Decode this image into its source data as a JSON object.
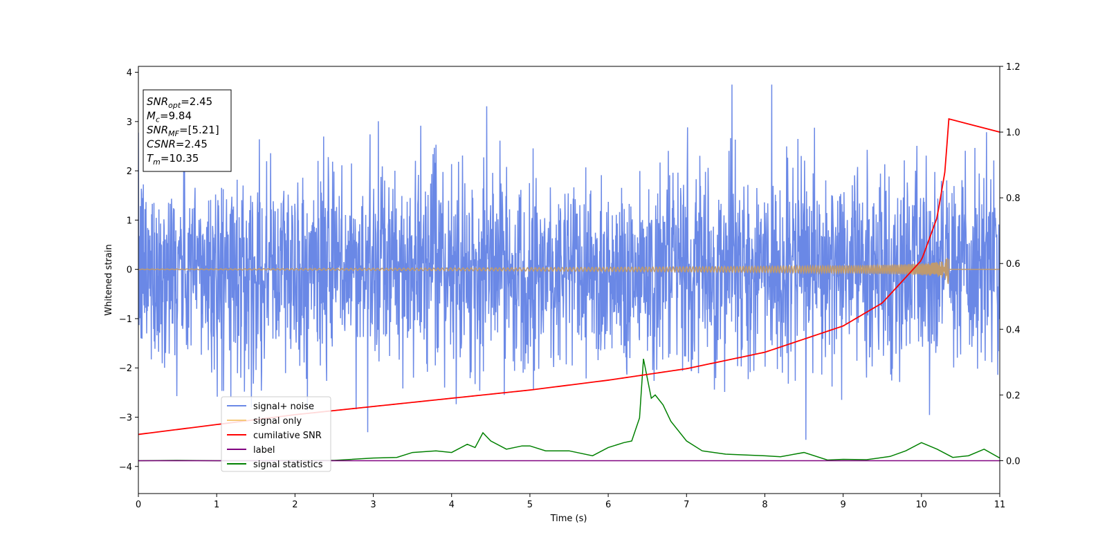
{
  "chart_data": {
    "type": "line",
    "xlabel": "Time (s)",
    "ylabel": "Whitened strain",
    "xlim": [
      0,
      11
    ],
    "ylim_left": [
      -4.55,
      4.12
    ],
    "ylim_right": [
      -0.1,
      1.2
    ],
    "xticks": [
      "0",
      "1",
      "2",
      "3",
      "4",
      "5",
      "6",
      "7",
      "8",
      "9",
      "10",
      "11"
    ],
    "yticks_left": [
      "4",
      "3",
      "2",
      "1",
      "0",
      "−1",
      "−2",
      "−3",
      "−4"
    ],
    "yticks_right": [
      "1.2",
      "1.0",
      "0.8",
      "0.6",
      "0.4",
      "0.2",
      "0.0"
    ],
    "grid": false,
    "legend_position": "lower-left",
    "colors": {
      "signal_noise": "#6a88e6",
      "signal_only": "#f5c97a",
      "cumulative_snr": "#ff0000",
      "label": "#800080",
      "signal_statistics": "#008000",
      "overlap": "#bf9a6e"
    },
    "info_box": [
      {
        "base": "SNR",
        "sub": "opt",
        "rest": "=2.45"
      },
      {
        "base": "M",
        "sub": "c",
        "rest": "=9.84"
      },
      {
        "base": "SNR",
        "sub": "MF",
        "rest": "=[5.21]"
      },
      {
        "base": "CSNR",
        "sub": "",
        "rest": "=2.45"
      },
      {
        "base": "T",
        "sub": "m",
        "rest": "=10.35"
      }
    ],
    "series": [
      {
        "name": "signal+ noise",
        "axis": "left",
        "noise_std": 1.0,
        "x_range": [
          0,
          11
        ]
      },
      {
        "name": "signal only",
        "axis": "left",
        "merger_time": 10.35,
        "peak_amplitude": 0.4
      },
      {
        "name": "cumilative SNR",
        "axis": "right",
        "x": [
          0,
          1,
          2,
          3,
          4,
          5,
          6,
          7,
          8,
          9,
          9.5,
          10,
          10.2,
          10.3,
          10.35,
          11
        ],
        "y": [
          0.04,
          0.07,
          0.1,
          0.125,
          0.15,
          0.175,
          0.205,
          0.24,
          0.29,
          0.37,
          0.44,
          0.57,
          0.7,
          0.84,
          1.0,
          1.0
        ]
      },
      {
        "name": "label",
        "axis": "right",
        "x": [
          0,
          11
        ],
        "y": [
          0.0,
          0.0
        ]
      },
      {
        "name": "signal statistics",
        "axis": "right",
        "x": [
          0,
          0.5,
          1,
          1.5,
          2,
          2.5,
          3,
          3.3,
          3.5,
          3.8,
          4.0,
          4.2,
          4.3,
          4.4,
          4.5,
          4.7,
          4.9,
          5.0,
          5.2,
          5.5,
          5.8,
          6.0,
          6.2,
          6.3,
          6.4,
          6.45,
          6.5,
          6.55,
          6.6,
          6.7,
          6.8,
          7.0,
          7.2,
          7.5,
          8.0,
          8.2,
          8.5,
          8.8,
          9.0,
          9.3,
          9.6,
          9.8,
          10.0,
          10.2,
          10.4,
          10.6,
          10.8,
          11
        ],
        "y": [
          0.0,
          0.001,
          0.0,
          0.0,
          0.001,
          0.001,
          0.008,
          0.01,
          0.025,
          0.03,
          0.025,
          0.05,
          0.04,
          0.085,
          0.06,
          0.035,
          0.045,
          0.045,
          0.03,
          0.03,
          0.015,
          0.04,
          0.055,
          0.06,
          0.13,
          0.31,
          0.25,
          0.19,
          0.2,
          0.17,
          0.12,
          0.06,
          0.03,
          0.02,
          0.015,
          0.012,
          0.025,
          0.002,
          0.004,
          0.003,
          0.013,
          0.03,
          0.055,
          0.035,
          0.01,
          0.015,
          0.035,
          0.008
        ]
      }
    ]
  }
}
